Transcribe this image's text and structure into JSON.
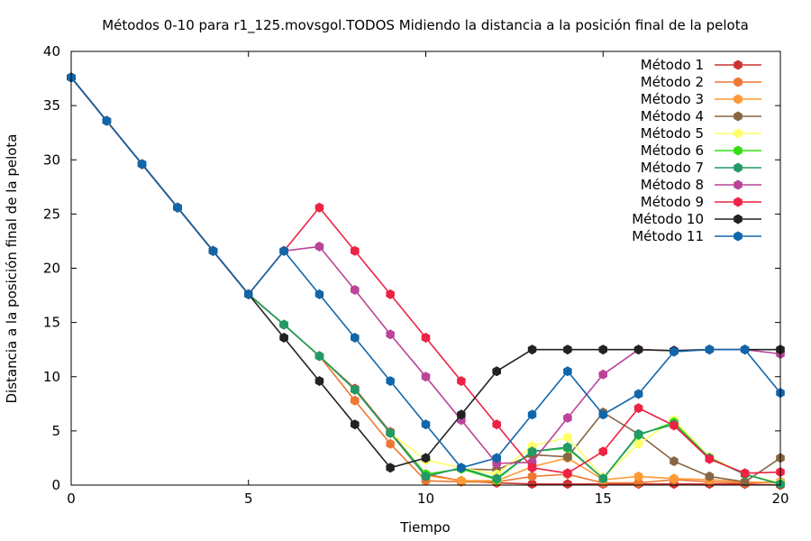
{
  "chart_data": {
    "type": "line",
    "title": "Métodos 0-10 para r1_125.movsgol.TODOS Midiendo la distancia a la posición final de la pelota",
    "xlabel": "Tiempo",
    "ylabel": "Distancia a la posición final de la pelota",
    "xlim": [
      0,
      20
    ],
    "ylim": [
      0,
      40
    ],
    "xticks": [
      0,
      5,
      10,
      15,
      20
    ],
    "yticks": [
      0,
      5,
      10,
      15,
      20,
      25,
      30,
      35,
      40
    ],
    "grid": false,
    "legend_position": "top-right",
    "x": [
      0,
      1,
      2,
      3,
      4,
      5,
      6,
      7,
      8,
      9,
      10,
      11,
      12,
      13,
      14,
      15,
      16,
      17,
      18,
      19,
      20
    ],
    "series": [
      {
        "name": "Método 1",
        "color": "#cc3333",
        "values": [
          37.6,
          33.6,
          29.6,
          25.6,
          21.6,
          17.6,
          14.8,
          11.9,
          8.9,
          4.9,
          1.0,
          0.4,
          0.2,
          0.1,
          0.1,
          0.1,
          0.1,
          0.1,
          0.1,
          0.1,
          0.0
        ]
      },
      {
        "name": "Método 2",
        "color": "#ee7733",
        "values": [
          37.6,
          33.6,
          29.6,
          25.6,
          21.6,
          17.6,
          14.8,
          11.9,
          7.8,
          3.8,
          0.4,
          0.3,
          0.3,
          0.8,
          1.0,
          0.2,
          0.2,
          0.5,
          0.3,
          0.2,
          0.3
        ]
      },
      {
        "name": "Método 3",
        "color": "#ff9933",
        "values": [
          37.6,
          33.6,
          29.6,
          25.6,
          21.6,
          17.6,
          14.8,
          11.9,
          8.8,
          4.8,
          0.9,
          0.4,
          0.4,
          1.7,
          2.5,
          0.5,
          0.8,
          0.6,
          0.5,
          0.3,
          0.2
        ]
      },
      {
        "name": "Método 4",
        "color": "#886644",
        "values": [
          37.6,
          33.6,
          29.6,
          25.6,
          21.6,
          17.6,
          14.8,
          11.9,
          8.8,
          4.8,
          1.0,
          1.5,
          1.4,
          2.8,
          2.6,
          6.7,
          4.7,
          2.2,
          0.8,
          0.3,
          2.5
        ]
      },
      {
        "name": "Método 5",
        "color": "#ffff66",
        "values": [
          37.6,
          33.6,
          29.6,
          25.6,
          21.6,
          17.6,
          14.8,
          11.9,
          8.8,
          4.8,
          2.3,
          1.6,
          1.0,
          3.6,
          4.4,
          0.7,
          3.8,
          6.0,
          2.6,
          1.0,
          0.2
        ]
      },
      {
        "name": "Método 6",
        "color": "#33dd11",
        "values": [
          37.6,
          33.6,
          29.6,
          25.6,
          21.6,
          17.6,
          14.8,
          11.9,
          8.8,
          4.8,
          1.0,
          1.5,
          0.5,
          3.1,
          3.4,
          0.6,
          4.6,
          5.8,
          2.5,
          1.0,
          0.1
        ]
      },
      {
        "name": "Método 7",
        "color": "#229966",
        "values": [
          37.6,
          33.6,
          29.6,
          25.6,
          21.6,
          17.6,
          14.8,
          11.9,
          8.8,
          4.8,
          0.8,
          1.6,
          0.6,
          3.1,
          3.5,
          0.6,
          4.7,
          5.6,
          2.5,
          1.0,
          0.1
        ]
      },
      {
        "name": "Método 8",
        "color": "#bb4499",
        "values": [
          37.6,
          33.6,
          29.6,
          25.6,
          21.6,
          17.6,
          21.6,
          22.0,
          18.0,
          13.9,
          10.0,
          6.0,
          2.0,
          2.1,
          6.2,
          10.2,
          12.5,
          12.4,
          12.5,
          12.5,
          12.1
        ]
      },
      {
        "name": "Método 9",
        "color": "#ee2244",
        "values": [
          37.6,
          33.6,
          29.6,
          25.6,
          21.6,
          17.6,
          21.6,
          25.6,
          21.6,
          17.6,
          13.6,
          9.6,
          5.6,
          1.6,
          1.1,
          3.1,
          7.1,
          5.5,
          2.4,
          1.1,
          1.2
        ]
      },
      {
        "name": "Método 10",
        "color": "#222222",
        "values": [
          37.6,
          33.6,
          29.6,
          25.6,
          21.6,
          17.6,
          13.6,
          9.6,
          5.6,
          1.6,
          2.5,
          6.5,
          10.5,
          12.5,
          12.5,
          12.5,
          12.5,
          12.4,
          12.5,
          12.5,
          12.5
        ]
      },
      {
        "name": "Método 11",
        "color": "#1166aa",
        "values": [
          37.6,
          33.6,
          29.6,
          25.6,
          21.6,
          17.6,
          21.6,
          17.6,
          13.6,
          9.6,
          5.6,
          1.6,
          2.5,
          6.5,
          10.5,
          6.5,
          8.4,
          12.3,
          12.5,
          12.5,
          8.5
        ]
      }
    ]
  }
}
